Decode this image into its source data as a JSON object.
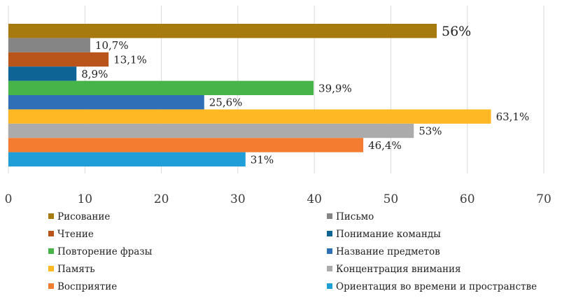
{
  "chart_data": {
    "type": "bar",
    "orientation": "horizontal",
    "title": "",
    "xlabel": "",
    "ylabel": "",
    "xlim": [
      0,
      70
    ],
    "x_ticks": [
      "0",
      "10",
      "20",
      "30",
      "40",
      "50",
      "60",
      "70"
    ],
    "grid": true,
    "legend_position": "bottom",
    "series": [
      {
        "name": "Рисование",
        "value": 56,
        "label": "56%",
        "color": "#A77A10"
      },
      {
        "name": "Письмо",
        "value": 10.7,
        "label": "10,7%",
        "color": "#858585"
      },
      {
        "name": "Чтение",
        "value": 13.1,
        "label": "13,1%",
        "color": "#B9541B"
      },
      {
        "name": "Понимание команды",
        "value": 8.9,
        "label": "8,9%",
        "color": "#0F6496"
      },
      {
        "name": "Повторение фразы",
        "value": 39.9,
        "label": "39,9%",
        "color": "#46B448"
      },
      {
        "name": "Название предметов",
        "value": 25.6,
        "label": "25,6%",
        "color": "#2E6FB8"
      },
      {
        "name": "Память",
        "value": 63.1,
        "label": "63,1%",
        "color": "#FDB824"
      },
      {
        "name": "Концентрация внимания",
        "value": 53,
        "label": "53%",
        "color": "#ABABAB"
      },
      {
        "name": "Восприятие",
        "value": 46.4,
        "label": "46,4%",
        "color": "#F47C30"
      },
      {
        "name": "Ориентация во времени и пространстве",
        "value": 31,
        "label": "31%",
        "color": "#1F9ED8"
      }
    ]
  }
}
